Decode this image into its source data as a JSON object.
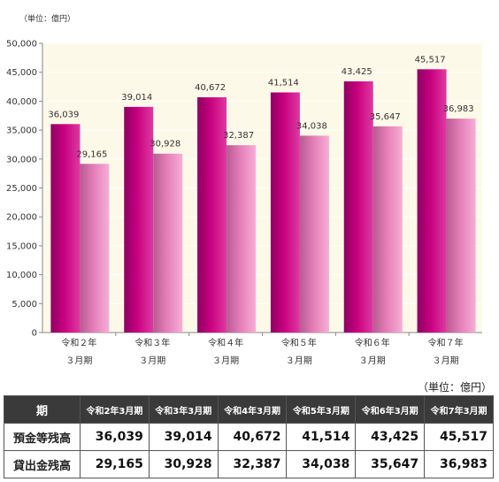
{
  "chart_unit": "（単位：億円）",
  "table_unit": "（単位：億円）",
  "chart_data": {
    "type": "bar",
    "categories": [
      [
        "令和２年",
        "３月期"
      ],
      [
        "令和３年",
        "３月期"
      ],
      [
        "令和４年",
        "３月期"
      ],
      [
        "令和５年",
        "３月期"
      ],
      [
        "令和６年",
        "３月期"
      ],
      [
        "令和７年",
        "３月期"
      ]
    ],
    "series": [
      {
        "name": "預金等残高",
        "values": [
          36039,
          39014,
          40672,
          41514,
          43425,
          45517
        ],
        "labels": [
          "36,039",
          "39,014",
          "40,672",
          "41,514",
          "43,425",
          "45,517"
        ]
      },
      {
        "name": "貸出金残高",
        "values": [
          29165,
          30928,
          32387,
          34038,
          35647,
          36983
        ],
        "labels": [
          "29,165",
          "30,928",
          "32,387",
          "34,038",
          "35,647",
          "36,983"
        ]
      }
    ],
    "ylim": [
      0,
      50000
    ],
    "yticks": [
      "0",
      "5,000",
      "10,000",
      "15,000",
      "20,000",
      "25,000",
      "30,000",
      "35,000",
      "40,000",
      "45,000",
      "50,000"
    ],
    "colors": {
      "plot_bg": "#fdf9e8",
      "deposit_dark": "#8c0062",
      "deposit_mid": "#c8007f",
      "deposit_light": "#de3aa2",
      "loan_dark": "#b85a92",
      "loan_mid": "#e47db7",
      "loan_light": "#f6aed6"
    }
  },
  "table": {
    "corner": "期",
    "headers": [
      "令和2年3月期",
      "令和3年3月期",
      "令和4年3月期",
      "令和5年3月期",
      "令和6年3月期",
      "令和7年3月期"
    ],
    "rows": [
      {
        "label": "預金等残高",
        "values": [
          "36,039",
          "39,014",
          "40,672",
          "41,514",
          "43,425",
          "45,517"
        ]
      },
      {
        "label": "貸出金残高",
        "values": [
          "29,165",
          "30,928",
          "32,387",
          "34,038",
          "35,647",
          "36,983"
        ]
      }
    ]
  }
}
